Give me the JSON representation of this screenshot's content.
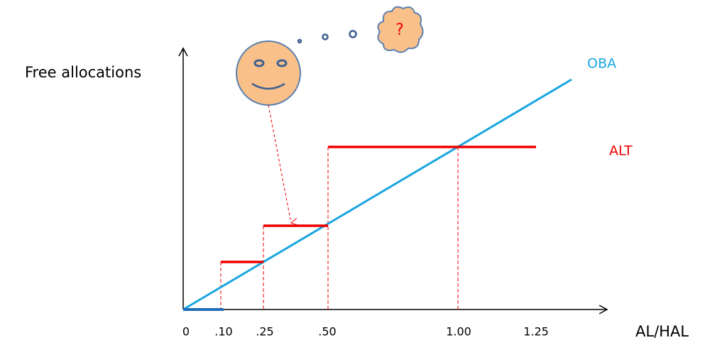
{
  "y_axis_label": "Free allocations",
  "x_axis_label": "AL/HAL",
  "x_tick_labels": [
    "0",
    ".10",
    ".25",
    ".50",
    "1.00",
    "1.25"
  ],
  "series": [
    {
      "label": "OBA"
    },
    {
      "label": "ALT"
    }
  ],
  "thought": "?"
}
